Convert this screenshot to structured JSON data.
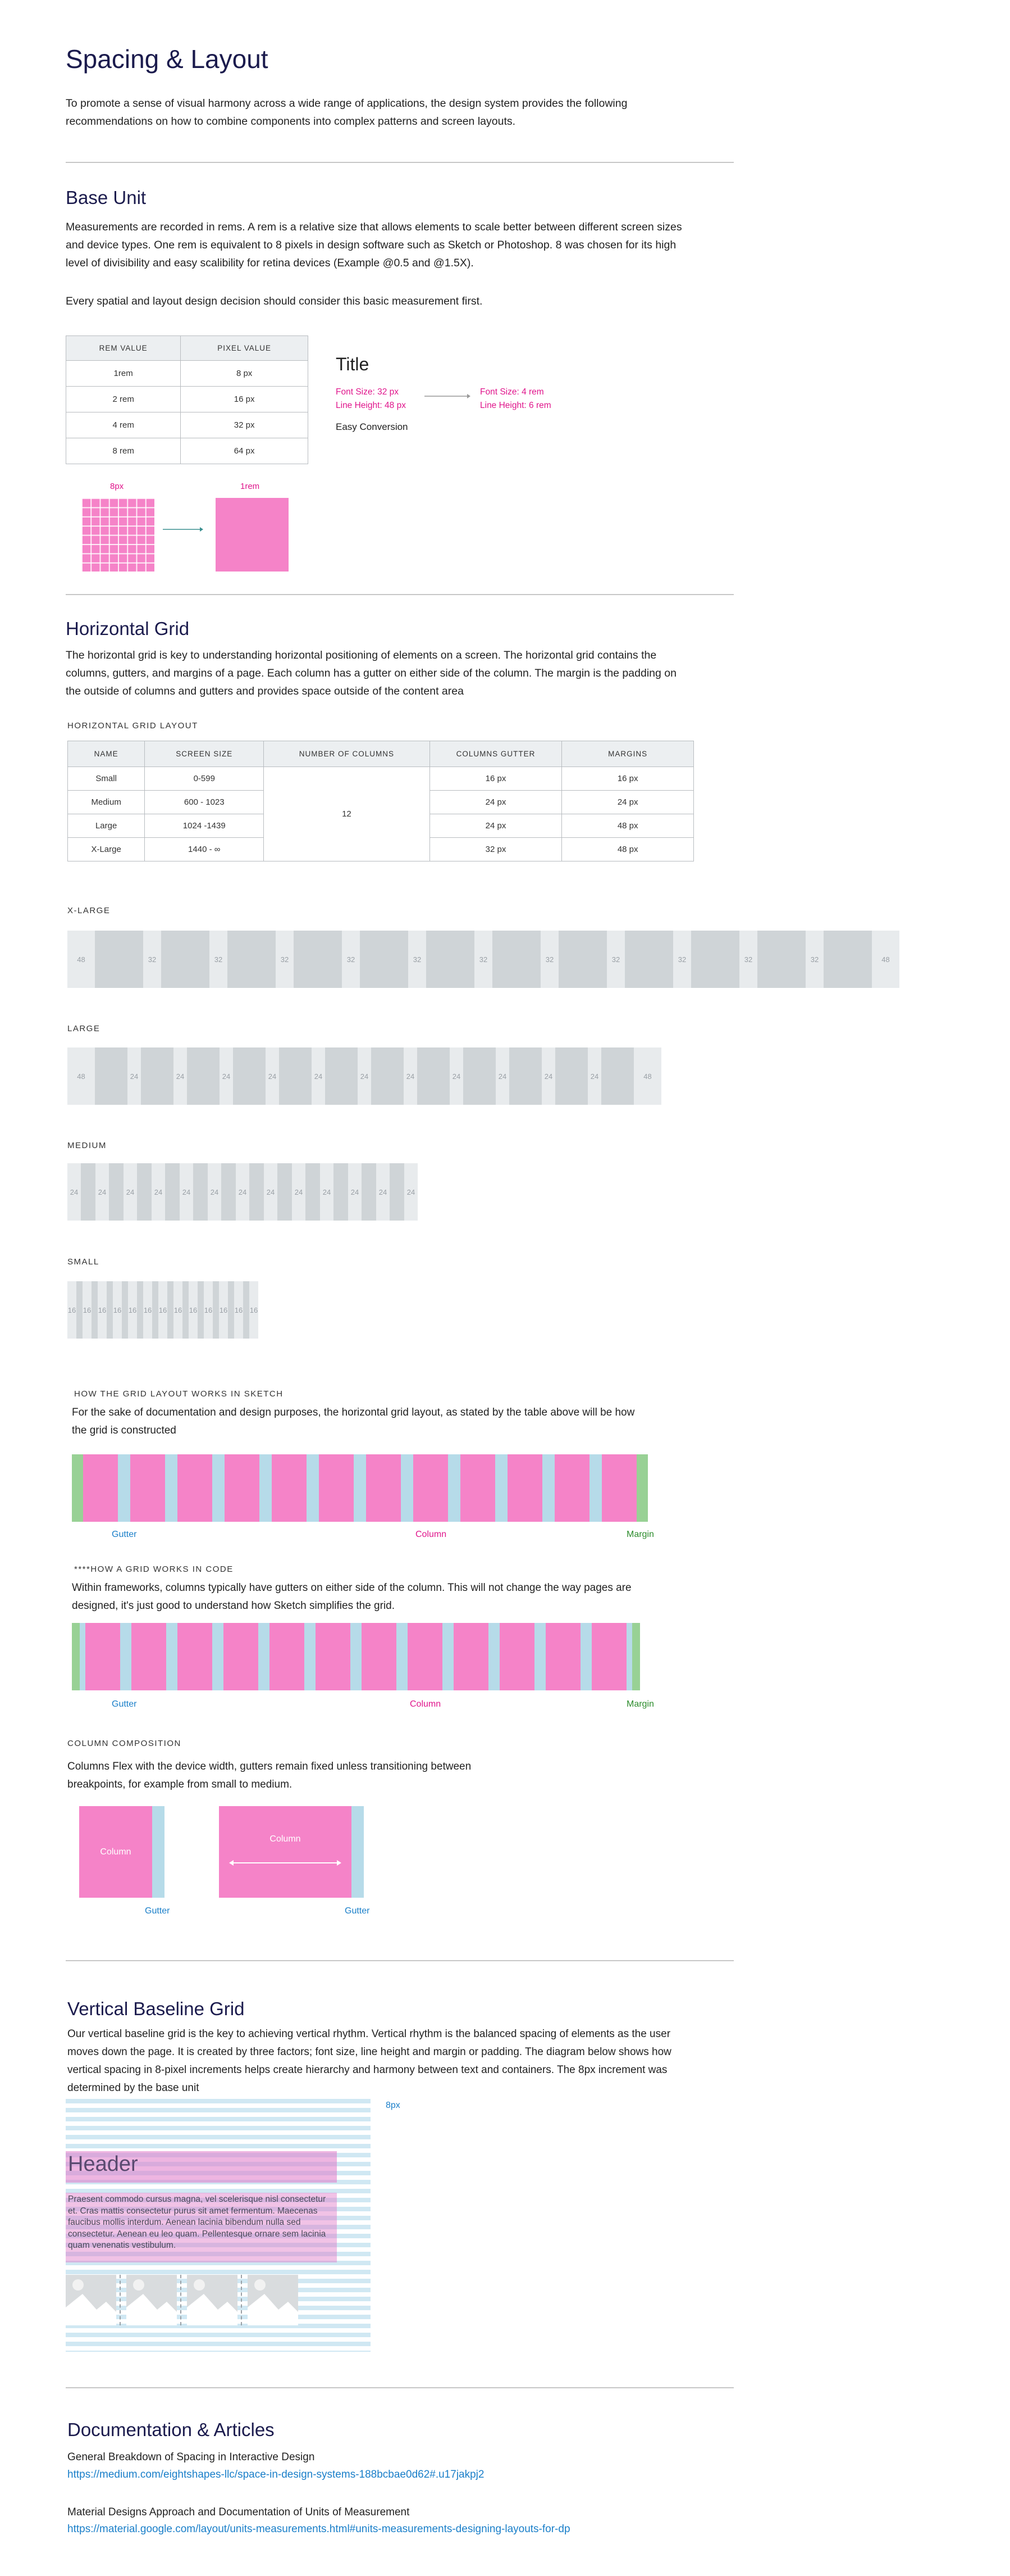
{
  "intro": {
    "title": "Spacing & Layout",
    "text": "To promote a sense of visual harmony across a wide range of applications, the design system provides the following recommendations on how to combine components into complex patterns and screen layouts."
  },
  "base_unit": {
    "title": "Base Unit",
    "p1": "Measurements are recorded in rems. A rem is a relative size that allows elements to scale better between different screen sizes and device types. One rem is equivalent to 8 pixels in design software such as Sketch or Photoshop. 8 was chosen for its high level of divisibility and easy scalibility for retina devices (Example @0.5 and @1.5X).",
    "p2": "Every spatial and layout design decision should consider this basic measurement first.",
    "table_headers": [
      "REM VALUE",
      "PIXEL VALUE"
    ],
    "table_rows": [
      [
        "1rem",
        "8 px"
      ],
      [
        "2 rem",
        "16 px"
      ],
      [
        "4 rem",
        "32 px"
      ],
      [
        "8 rem",
        "64 px"
      ]
    ],
    "example_title": "Title",
    "left_size": "Font Size: 32 px",
    "left_height": "Line Height: 48 px",
    "right_size": "Font Size: 4 rem",
    "right_height": "Line Height: 6 rem",
    "easy": "Easy Conversion",
    "px_label": "8px",
    "rem_label": "1rem"
  },
  "horizontal": {
    "title": "Horizontal Grid",
    "text": "The horizontal grid is key to understanding horizontal positioning of elements on a screen. The horizontal grid contains the columns, gutters, and margins of a page. Each column has a gutter on either side of the column. The margin is the padding on the outside of columns and gutters and provides space outside of the content area",
    "table_label": "HORIZONTAL GRID LAYOUT",
    "headers": [
      "NAME",
      "SCREEN SIZE",
      "NUMBER OF COLUMNS",
      "COLUMNS GUTTER",
      "MARGINS"
    ],
    "rows": [
      {
        "name": "Small",
        "size": "0-599",
        "gutter": "16 px",
        "margin": "16 px"
      },
      {
        "name": "Medium",
        "size": "600 - 1023",
        "gutter": "24 px",
        "margin": "24 px"
      },
      {
        "name": "Large",
        "size": "1024 -1439",
        "gutter": "24 px",
        "margin": "48 px"
      },
      {
        "name": "X-Large",
        "size": "1440 - ∞",
        "gutter": "32 px",
        "margin": "48 px"
      }
    ],
    "columns": "12",
    "grids": [
      {
        "label": "X-LARGE",
        "margin": "48",
        "gutter": "32"
      },
      {
        "label": "LARGE",
        "margin": "48",
        "gutter": "24"
      },
      {
        "label": "MEDIUM",
        "margin": "24",
        "gutter": "24"
      },
      {
        "label": "SMALL",
        "margin": "16",
        "gutter": "16"
      }
    ]
  },
  "sketch": {
    "label": "HOW THE GRID LAYOUT WORKS IN SKETCH",
    "text": "For the sake of documentation and design purposes, the horizontal grid layout, as stated by the table above will be how the grid is constructed",
    "gutter": "Gutter",
    "column": "Column",
    "margin": "Margin"
  },
  "code": {
    "label": "****HOW A GRID WORKS IN CODE",
    "text": "Within frameworks, columns typically have gutters on either side of the column. This will not change the way pages are designed, it's just good to understand how Sketch simplifies the grid.",
    "gutter": "Gutter",
    "column": "Column",
    "margin": "Margin"
  },
  "composition": {
    "label": "COLUMN COMPOSITION",
    "text": "Columns Flex with the device width, gutters remain fixed unless transitioning between breakpoints, for example from small to medium.",
    "column1": "Column",
    "column2": "Column",
    "gutter1": "Gutter",
    "gutter2": "Gutter"
  },
  "vertical": {
    "title": "Vertical Baseline Grid",
    "text": "Our vertical baseline grid is the key to achieving vertical rhythm. Vertical rhythm is the balanced spacing of elements as the user moves down the page. It is created by three factors; font size, line height and margin or padding. The diagram below shows how vertical spacing in 8-pixel increments helps create hierarchy and harmony between text and containers. The 8px increment was determined by the base unit",
    "px": "8px",
    "header": "Header",
    "body": "Praesent commodo cursus magna, vel scelerisque nisl consectetur et. Cras mattis consectetur purus sit amet fermentum. Maecenas faucibus mollis interdum. Aenean lacinia bibendum nulla sed consectetur. Aenean eu leo quam. Pellentesque ornare sem lacinia quam venenatis vestibulum."
  },
  "docs": {
    "title": "Documentation & Articles",
    "a1_title": "General Breakdown of Spacing in Interactive Design",
    "a1_link": "https://medium.com/eightshapes-llc/space-in-design-systems-188bcbae0d62#.u17jakpj2",
    "a2_title": "Material Designs Approach and Documentation of Units of Measurement",
    "a2_link": "https://material.google.com/layout/units-measurements.html#units-measurements-designing-layouts-for-dp"
  },
  "colors": {
    "pink": "#f583c8",
    "gutter_blue": "#b6dbe9",
    "margin_green": "#98d195",
    "grid_column": "#cfd4d7",
    "heading": "#1b1b4d"
  }
}
